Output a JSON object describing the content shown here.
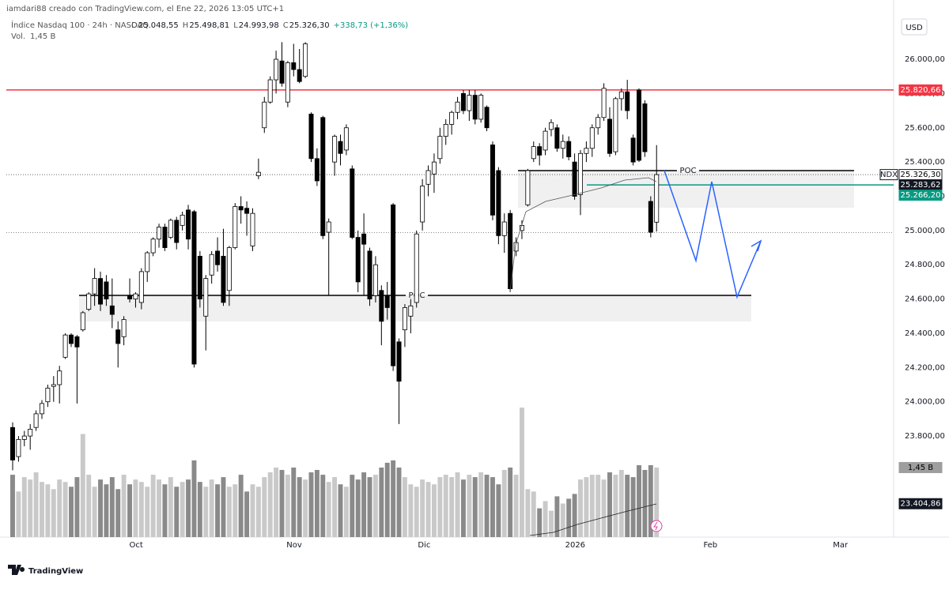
{
  "chart_data": {
    "type": "candlestick",
    "watermark": "iamdari88 creado con TradingView.com, el Ene 22, 2026 13:05 UTC+1",
    "symbol": "Índice Nasdaq 100 · 24h · NASDAQ",
    "legend": [
      {
        "key": "O",
        "label": "25.048,55"
      },
      {
        "key": "H",
        "label": "25.498,81"
      },
      {
        "key": "L",
        "label": "24.993,98"
      },
      {
        "key": "C",
        "label": "25.326,30"
      }
    ],
    "change": "+338,73 (+1,36%)",
    "volume_legend": {
      "key": "Vol.",
      "label": "1,45 B"
    },
    "currency": "USD",
    "brand": "TradingView",
    "up_color": "#ffffff",
    "down_color": "#000000",
    "volume_up_color": "#c9c9c9",
    "volume_down_color": "#8a8a8a",
    "xlim": [
      -2.16,
      150.5
    ],
    "xticks": [
      {
        "value": 21.1,
        "label": "Oct"
      },
      {
        "value": 48.1,
        "label": "Nov"
      },
      {
        "value": 70.3,
        "label": "Dic"
      },
      {
        "value": 96.1,
        "label": "2026"
      },
      {
        "value": 119.2,
        "label": "Feb"
      },
      {
        "value": 141.4,
        "label": "Mar"
      }
    ],
    "ylim": [
      23210,
      26346
    ],
    "yticks": [
      {
        "value": 23800,
        "label": "23.800,00"
      },
      {
        "value": 24000,
        "label": "24.000,00"
      },
      {
        "value": 24200,
        "label": "24.200,00"
      },
      {
        "value": 24400,
        "label": "24.400,00"
      },
      {
        "value": 24600,
        "label": "24.600,00"
      },
      {
        "value": 24800,
        "label": "24.800,00"
      },
      {
        "value": 25000,
        "label": "25.000,00"
      },
      {
        "value": 25200,
        "label": "25.200,00"
      },
      {
        "value": 25400,
        "label": "25.400,00"
      },
      {
        "value": 25600,
        "label": "25.600,00"
      },
      {
        "value": 25800,
        "label": "25.800,00"
      },
      {
        "value": 26000,
        "label": "26.000,00"
      }
    ],
    "vlim": [
      0,
      11.2
    ],
    "ohlc": [
      [
        23850,
        23880,
        23600,
        23660
      ],
      [
        23680,
        23800,
        23650,
        23780
      ],
      [
        23780,
        23830,
        23740,
        23800
      ],
      [
        23800,
        23870,
        23720,
        23840
      ],
      [
        23850,
        23950,
        23830,
        23930
      ],
      [
        23930,
        24010,
        23900,
        23990
      ],
      [
        24000,
        24100,
        23970,
        24080
      ],
      [
        24090,
        24150,
        24000,
        24100
      ],
      [
        24100,
        24210,
        23990,
        24180
      ],
      [
        24260,
        24400,
        24250,
        24390
      ],
      [
        24390,
        24400,
        24320,
        24340
      ],
      [
        24380,
        24390,
        23990,
        24320
      ],
      [
        24420,
        24530,
        24410,
        24520
      ],
      [
        24540,
        24640,
        24530,
        24630
      ],
      [
        24630,
        24780,
        24560,
        24720
      ],
      [
        24720,
        24760,
        24530,
        24570
      ],
      [
        24700,
        24740,
        24560,
        24600
      ],
      [
        24560,
        24720,
        24430,
        24510
      ],
      [
        24420,
        24470,
        24200,
        24340
      ],
      [
        24380,
        24500,
        24330,
        24480
      ],
      [
        24620,
        24720,
        24580,
        24600
      ],
      [
        24600,
        24640,
        24550,
        24630
      ],
      [
        24580,
        24780,
        24540,
        24760
      ],
      [
        24760,
        24880,
        24700,
        24870
      ],
      [
        24870,
        24960,
        24850,
        24950
      ],
      [
        24950,
        25040,
        24900,
        25020
      ],
      [
        25020,
        25040,
        24880,
        24900
      ],
      [
        24960,
        25070,
        24950,
        25060
      ],
      [
        25060,
        25080,
        24890,
        24930
      ],
      [
        25030,
        25110,
        25000,
        25090
      ],
      [
        25120,
        25150,
        24890,
        24950
      ],
      [
        25110,
        25120,
        24200,
        24220
      ],
      [
        24850,
        24880,
        24550,
        24600
      ],
      [
        24500,
        24740,
        24300,
        24720
      ],
      [
        24740,
        24880,
        24690,
        24860
      ],
      [
        24880,
        24960,
        24760,
        24800
      ],
      [
        24850,
        25010,
        24560,
        24580
      ],
      [
        24650,
        24910,
        24560,
        24900
      ],
      [
        24900,
        25160,
        24890,
        25140
      ],
      [
        25140,
        25200,
        25040,
        25120
      ],
      [
        25130,
        25170,
        24970,
        25100
      ],
      [
        24910,
        25130,
        24880,
        25100
      ],
      [
        25320,
        25420,
        25300,
        25340
      ],
      [
        25600,
        25780,
        25570,
        25750
      ],
      [
        25750,
        25900,
        25740,
        25880
      ],
      [
        25880,
        26050,
        25800,
        26000
      ],
      [
        25990,
        26100,
        25840,
        25860
      ],
      [
        25750,
        25990,
        25720,
        25980
      ],
      [
        25980,
        26090,
        25900,
        25940
      ],
      [
        25940,
        26060,
        25860,
        25870
      ],
      [
        25900,
        26100,
        25890,
        26090
      ],
      [
        25680,
        25690,
        25400,
        25420
      ],
      [
        25420,
        25480,
        25260,
        25290
      ],
      [
        25660,
        25670,
        24950,
        24970
      ],
      [
        24990,
        25070,
        24620,
        25050
      ],
      [
        25400,
        25560,
        25320,
        25550
      ],
      [
        25520,
        25560,
        25380,
        25450
      ],
      [
        25470,
        25620,
        25440,
        25600
      ],
      [
        25360,
        25380,
        24950,
        24960
      ],
      [
        24960,
        25000,
        24640,
        24700
      ],
      [
        24980,
        25100,
        24620,
        24920
      ],
      [
        24880,
        24900,
        24560,
        24600
      ],
      [
        24620,
        24850,
        24580,
        24800
      ],
      [
        24650,
        24680,
        24330,
        24470
      ],
      [
        24620,
        24700,
        24480,
        24550
      ],
      [
        25150,
        25160,
        24180,
        24210
      ],
      [
        24350,
        24370,
        23870,
        24120
      ],
      [
        24420,
        24570,
        24320,
        24550
      ],
      [
        24500,
        24600,
        24400,
        24560
      ],
      [
        24580,
        25000,
        24550,
        24980
      ],
      [
        25050,
        25300,
        25000,
        25260
      ],
      [
        25270,
        25380,
        25200,
        25350
      ],
      [
        25330,
        25450,
        25220,
        25400
      ],
      [
        25420,
        25600,
        25390,
        25550
      ],
      [
        25550,
        25650,
        25500,
        25620
      ],
      [
        25620,
        25700,
        25560,
        25690
      ],
      [
        25690,
        25780,
        25650,
        25750
      ],
      [
        25800,
        25820,
        25680,
        25700
      ],
      [
        25700,
        25820,
        25640,
        25790
      ],
      [
        25790,
        25820,
        25620,
        25650
      ],
      [
        25650,
        25800,
        25630,
        25790
      ],
      [
        25720,
        25730,
        25580,
        25600
      ],
      [
        25500,
        25520,
        25060,
        25090
      ],
      [
        25350,
        25370,
        24920,
        24970
      ],
      [
        24970,
        25100,
        24870,
        25050
      ],
      [
        25100,
        25120,
        24640,
        24660
      ],
      [
        24880,
        24960,
        24850,
        24930
      ],
      [
        25000,
        25060,
        24950,
        25030
      ],
      [
        25150,
        25360,
        25140,
        25350
      ],
      [
        25420,
        25520,
        25400,
        25490
      ],
      [
        25490,
        25510,
        25380,
        25440
      ],
      [
        25470,
        25600,
        25440,
        25580
      ],
      [
        25590,
        25650,
        25550,
        25630
      ],
      [
        25600,
        25620,
        25460,
        25480
      ],
      [
        25480,
        25560,
        25420,
        25520
      ],
      [
        25520,
        25550,
        25410,
        25430
      ],
      [
        25400,
        25450,
        25180,
        25200
      ],
      [
        25210,
        25470,
        25090,
        25450
      ],
      [
        25450,
        25520,
        25400,
        25480
      ],
      [
        25480,
        25620,
        25430,
        25600
      ],
      [
        25600,
        25680,
        25560,
        25660
      ],
      [
        25660,
        25860,
        25640,
        25830
      ],
      [
        25650,
        25720,
        25430,
        25450
      ],
      [
        25460,
        25780,
        25440,
        25770
      ],
      [
        25770,
        25830,
        25700,
        25810
      ],
      [
        25810,
        25880,
        25650,
        25700
      ],
      [
        25540,
        25560,
        25380,
        25400
      ],
      [
        25820,
        25830,
        25400,
        25410
      ],
      [
        25740,
        25760,
        25430,
        25460
      ],
      [
        25170,
        25200,
        24960,
        24990
      ],
      [
        25048.55,
        25498.81,
        24993.98,
        25326.3
      ]
    ],
    "volume": [
      1.3,
      0.95,
      1.25,
      1.2,
      1.35,
      1.15,
      1.1,
      1.0,
      1.2,
      1.15,
      1.05,
      1.25,
      2.15,
      1.3,
      1.05,
      1.2,
      1.1,
      1.25,
      1.0,
      1.3,
      1.1,
      1.2,
      1.15,
      1.05,
      1.3,
      1.2,
      1.1,
      1.25,
      1.05,
      1.15,
      1.2,
      1.6,
      1.15,
      1.05,
      1.2,
      1.1,
      1.25,
      1.05,
      1.1,
      1.3,
      0.95,
      1.1,
      1.05,
      1.25,
      1.35,
      1.45,
      1.4,
      1.3,
      1.45,
      1.25,
      1.2,
      1.35,
      1.4,
      1.3,
      1.15,
      1.25,
      1.1,
      1.05,
      1.3,
      1.2,
      1.35,
      1.25,
      1.3,
      1.45,
      1.55,
      1.6,
      1.45,
      1.25,
      1.1,
      1.05,
      1.2,
      1.15,
      1.1,
      1.25,
      1.3,
      1.25,
      1.35,
      1.2,
      1.3,
      1.25,
      1.35,
      1.3,
      1.25,
      1.1,
      1.4,
      1.45,
      1.3,
      2.7,
      1.0,
      0.95,
      0.6,
      0.75,
      0.55,
      0.85,
      0.7,
      0.8,
      0.9,
      1.2,
      1.25,
      1.3,
      1.3,
      1.2,
      1.35,
      1.3,
      1.4,
      1.3,
      1.25,
      1.5,
      1.4,
      1.5,
      1.45
    ],
    "resistance": {
      "value": 25820.66,
      "color": "#f23645"
    },
    "previous_close": 24987.57,
    "last_price": 25326.3,
    "green_level": {
      "value": 25266.2,
      "color": "#089981"
    },
    "poc_zones": [
      {
        "label": "POC",
        "poc": 25350,
        "low": 25133
      },
      {
        "label": "POC",
        "poc": 24621,
        "low": 24469
      }
    ],
    "price_labels": [
      {
        "value": 25820.66,
        "label": "25.820,66",
        "bg": "#f23645",
        "fg": "#ffffff"
      },
      {
        "value": 25326.3,
        "name": "NDX",
        "label": "25.326,30",
        "bg": "#ffffff",
        "fg": "#000000"
      },
      {
        "value": 25283.62,
        "label": "25.283,62",
        "bg": "#131722",
        "fg": "#ffffff"
      },
      {
        "value": 25266.2,
        "label": "25.266,20",
        "bg": "#089981",
        "fg": "#ffffff"
      },
      {
        "value": 23404.86,
        "label": "23.404,86",
        "bg": "#131722",
        "fg": "#ffffff"
      }
    ],
    "volume_label": {
      "value": 1.45,
      "label": "1,45 B",
      "bg": "#9e9e9e",
      "fg": "#000000"
    }
  }
}
